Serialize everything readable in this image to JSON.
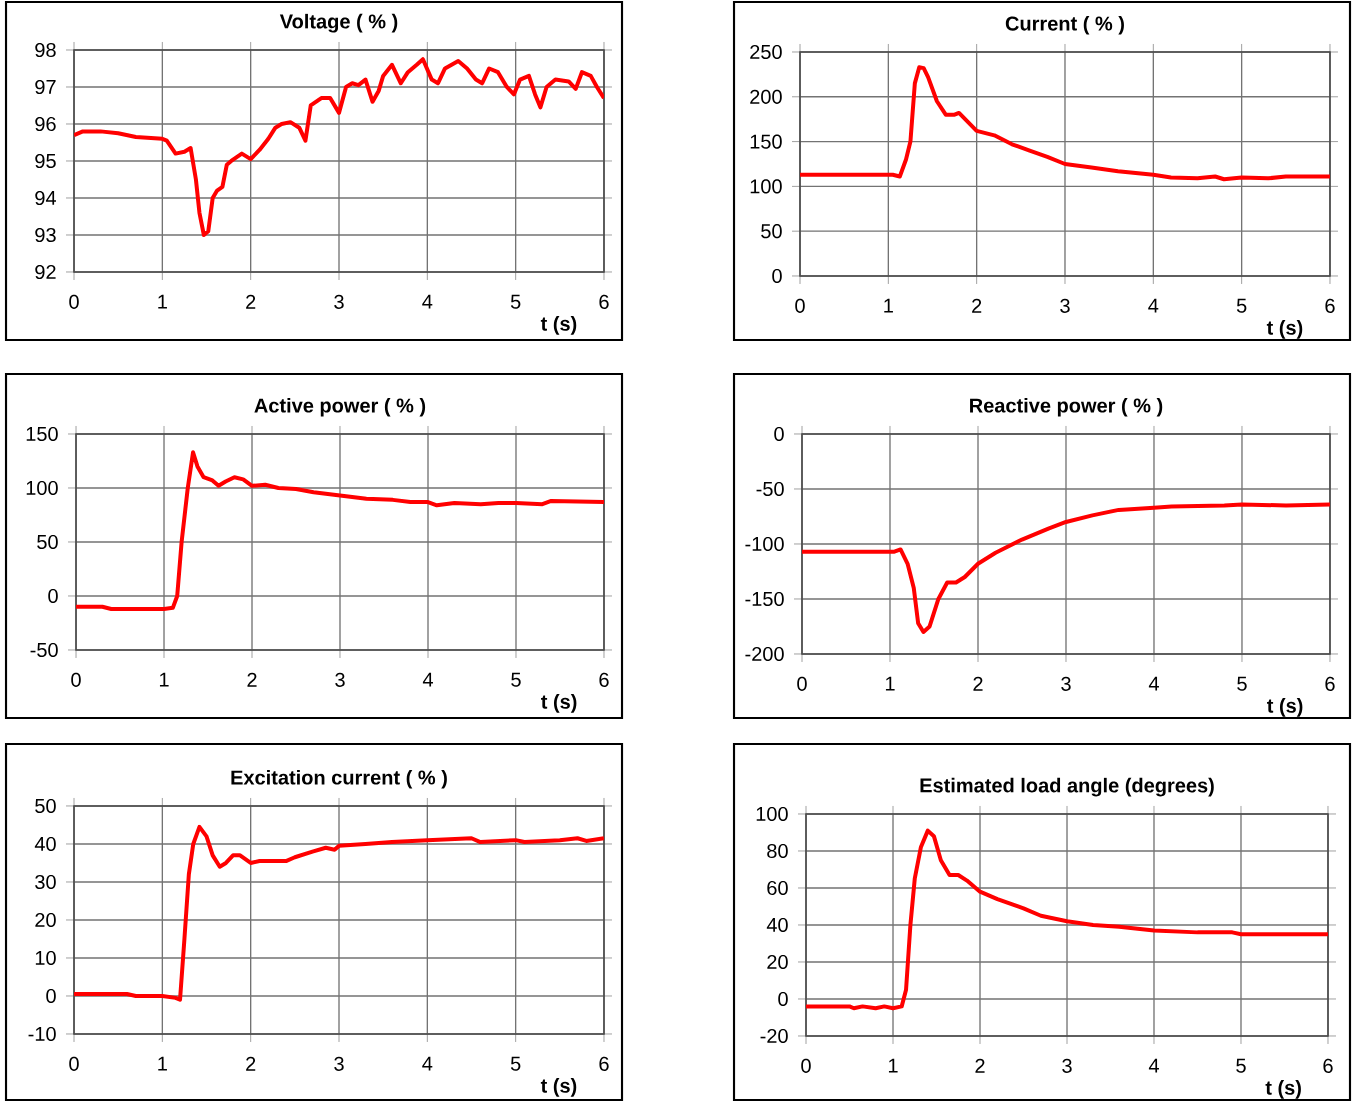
{
  "chart_data": [
    {
      "type": "line",
      "title": "Voltage ( % )",
      "xlabel": "t (s)",
      "color": "#ff0000",
      "grid": true,
      "xlim": [
        0,
        6
      ],
      "ylim": [
        92,
        98
      ],
      "xticks": [
        0,
        1,
        2,
        3,
        4,
        5,
        6
      ],
      "yticks": [
        92,
        93,
        94,
        95,
        96,
        97,
        98
      ],
      "x": [
        0,
        0.1,
        0.3,
        0.5,
        0.7,
        1.0,
        1.05,
        1.15,
        1.25,
        1.32,
        1.38,
        1.42,
        1.47,
        1.52,
        1.57,
        1.62,
        1.68,
        1.73,
        1.78,
        1.9,
        2.0,
        2.1,
        2.2,
        2.28,
        2.35,
        2.45,
        2.55,
        2.62,
        2.68,
        2.8,
        2.9,
        3.0,
        3.08,
        3.15,
        3.22,
        3.3,
        3.38,
        3.45,
        3.5,
        3.6,
        3.7,
        3.78,
        3.88,
        3.95,
        4.05,
        4.12,
        4.2,
        4.35,
        4.45,
        4.55,
        4.62,
        4.7,
        4.8,
        4.9,
        4.98,
        5.05,
        5.15,
        5.22,
        5.28,
        5.35,
        5.45,
        5.6,
        5.68,
        5.75,
        5.85,
        5.92,
        6.0
      ],
      "values": [
        95.7,
        95.8,
        95.8,
        95.75,
        95.65,
        95.6,
        95.55,
        95.2,
        95.25,
        95.35,
        94.5,
        93.6,
        93.0,
        93.1,
        94.0,
        94.2,
        94.3,
        94.9,
        95.0,
        95.2,
        95.05,
        95.3,
        95.6,
        95.9,
        96.0,
        96.05,
        95.9,
        95.55,
        96.5,
        96.7,
        96.7,
        96.3,
        97.0,
        97.1,
        97.05,
        97.2,
        96.6,
        96.9,
        97.3,
        97.6,
        97.1,
        97.4,
        97.6,
        97.75,
        97.2,
        97.1,
        97.5,
        97.7,
        97.5,
        97.2,
        97.1,
        97.5,
        97.4,
        97.0,
        96.8,
        97.2,
        97.3,
        96.8,
        96.45,
        97.0,
        97.2,
        97.15,
        96.95,
        97.4,
        97.3,
        97.0,
        96.7
      ]
    },
    {
      "type": "line",
      "title": "Current ( % )",
      "xlabel": "t (s)",
      "color": "#ff0000",
      "grid": true,
      "xlim": [
        0,
        6
      ],
      "ylim": [
        0,
        250
      ],
      "xticks": [
        0,
        1,
        2,
        3,
        4,
        5,
        6
      ],
      "yticks": [
        0,
        50,
        100,
        150,
        200,
        250
      ],
      "x": [
        0,
        1.05,
        1.13,
        1.2,
        1.25,
        1.3,
        1.35,
        1.4,
        1.45,
        1.55,
        1.65,
        1.75,
        1.8,
        1.9,
        2.0,
        2.2,
        2.4,
        2.6,
        2.8,
        3.0,
        3.3,
        3.6,
        4.0,
        4.2,
        4.5,
        4.7,
        4.8,
        5.0,
        5.3,
        5.5,
        6.0
      ],
      "values": [
        113,
        113,
        111,
        130,
        150,
        215,
        233,
        232,
        222,
        195,
        180,
        180,
        182,
        172,
        162,
        157,
        147,
        140,
        133,
        125,
        121,
        117,
        113,
        110,
        109,
        111,
        108,
        110,
        109,
        111,
        111
      ]
    },
    {
      "type": "line",
      "title": "Active power ( % )",
      "xlabel": "t (s)",
      "color": "#ff0000",
      "grid": true,
      "xlim": [
        0,
        6
      ],
      "ylim": [
        -50,
        150
      ],
      "xticks": [
        0,
        1,
        2,
        3,
        4,
        5,
        6
      ],
      "yticks": [
        -50,
        0,
        50,
        100,
        150
      ],
      "x": [
        0,
        0.3,
        0.4,
        1.0,
        1.1,
        1.15,
        1.2,
        1.27,
        1.33,
        1.38,
        1.45,
        1.55,
        1.62,
        1.7,
        1.8,
        1.9,
        2.0,
        2.15,
        2.3,
        2.5,
        2.7,
        3.0,
        3.3,
        3.6,
        3.8,
        4.0,
        4.1,
        4.3,
        4.6,
        4.8,
        5.0,
        5.3,
        5.4,
        6.0
      ],
      "values": [
        -10,
        -10,
        -12,
        -12,
        -11,
        0,
        50,
        100,
        133,
        120,
        110,
        107,
        102,
        106,
        110,
        108,
        102,
        103,
        100,
        99,
        96,
        93,
        90,
        89,
        87,
        87,
        84,
        86,
        85,
        86,
        86,
        85,
        88,
        87
      ]
    },
    {
      "type": "line",
      "title": "Reactive power ( % )",
      "xlabel": "t (s)",
      "color": "#ff0000",
      "grid": true,
      "xlim": [
        0,
        6
      ],
      "ylim": [
        -200,
        0
      ],
      "xticks": [
        0,
        1,
        2,
        3,
        4,
        5,
        6
      ],
      "yticks": [
        -200,
        -150,
        -100,
        -50,
        0
      ],
      "x": [
        0,
        1.05,
        1.12,
        1.2,
        1.27,
        1.32,
        1.38,
        1.45,
        1.55,
        1.65,
        1.75,
        1.85,
        2.0,
        2.2,
        2.5,
        2.8,
        3.0,
        3.3,
        3.6,
        4.0,
        4.2,
        4.8,
        5.0,
        5.5,
        6.0
      ],
      "values": [
        -107,
        -107,
        -105,
        -118,
        -140,
        -172,
        -180,
        -175,
        -150,
        -135,
        -135,
        -130,
        -118,
        -108,
        -96,
        -86,
        -80,
        -74,
        -69,
        -67,
        -66,
        -65,
        -64,
        -65,
        -64
      ]
    },
    {
      "type": "line",
      "title": "Excitation current ( % )",
      "xlabel": "t (s)",
      "color": "#ff0000",
      "grid": true,
      "xlim": [
        0,
        6
      ],
      "ylim": [
        -10,
        50
      ],
      "xticks": [
        0,
        1,
        2,
        3,
        4,
        5,
        6
      ],
      "yticks": [
        -10,
        0,
        10,
        20,
        30,
        40,
        50
      ],
      "x": [
        0,
        0.6,
        0.7,
        1.0,
        1.15,
        1.2,
        1.25,
        1.3,
        1.35,
        1.42,
        1.5,
        1.57,
        1.65,
        1.72,
        1.8,
        1.88,
        2.0,
        2.1,
        2.4,
        2.5,
        2.7,
        2.85,
        2.95,
        3.0,
        3.3,
        3.6,
        4.0,
        4.5,
        4.6,
        5.0,
        5.1,
        5.5,
        5.7,
        5.8,
        6.0
      ],
      "values": [
        0.5,
        0.5,
        0,
        0,
        -0.5,
        -1,
        15,
        32,
        40,
        44.5,
        42,
        37,
        34,
        35,
        37,
        37,
        35,
        35.5,
        35.5,
        36.5,
        38,
        39,
        38.5,
        39.5,
        40,
        40.5,
        41,
        41.5,
        40.5,
        41,
        40.5,
        41,
        41.5,
        40.8,
        41.5
      ]
    },
    {
      "type": "line",
      "title": "Estimated load angle (degrees)",
      "xlabel": "t (s)",
      "color": "#ff0000",
      "grid": true,
      "xlim": [
        0,
        6
      ],
      "ylim": [
        -20,
        100
      ],
      "xticks": [
        0,
        1,
        2,
        3,
        4,
        5,
        6
      ],
      "yticks": [
        -20,
        0,
        20,
        40,
        60,
        80,
        100
      ],
      "x": [
        0,
        0.5,
        0.55,
        0.65,
        0.8,
        0.9,
        1.0,
        1.1,
        1.15,
        1.2,
        1.25,
        1.32,
        1.4,
        1.47,
        1.55,
        1.65,
        1.75,
        1.85,
        2.0,
        2.2,
        2.5,
        2.7,
        3.0,
        3.3,
        3.6,
        4.0,
        4.5,
        4.9,
        5.0,
        6.0
      ],
      "values": [
        -4,
        -4,
        -5,
        -4,
        -5,
        -4,
        -5,
        -4,
        5,
        40,
        65,
        82,
        91,
        88,
        75,
        67,
        67,
        64,
        58,
        54,
        49,
        45,
        42,
        40,
        39,
        37,
        36,
        36,
        35,
        35
      ]
    }
  ]
}
